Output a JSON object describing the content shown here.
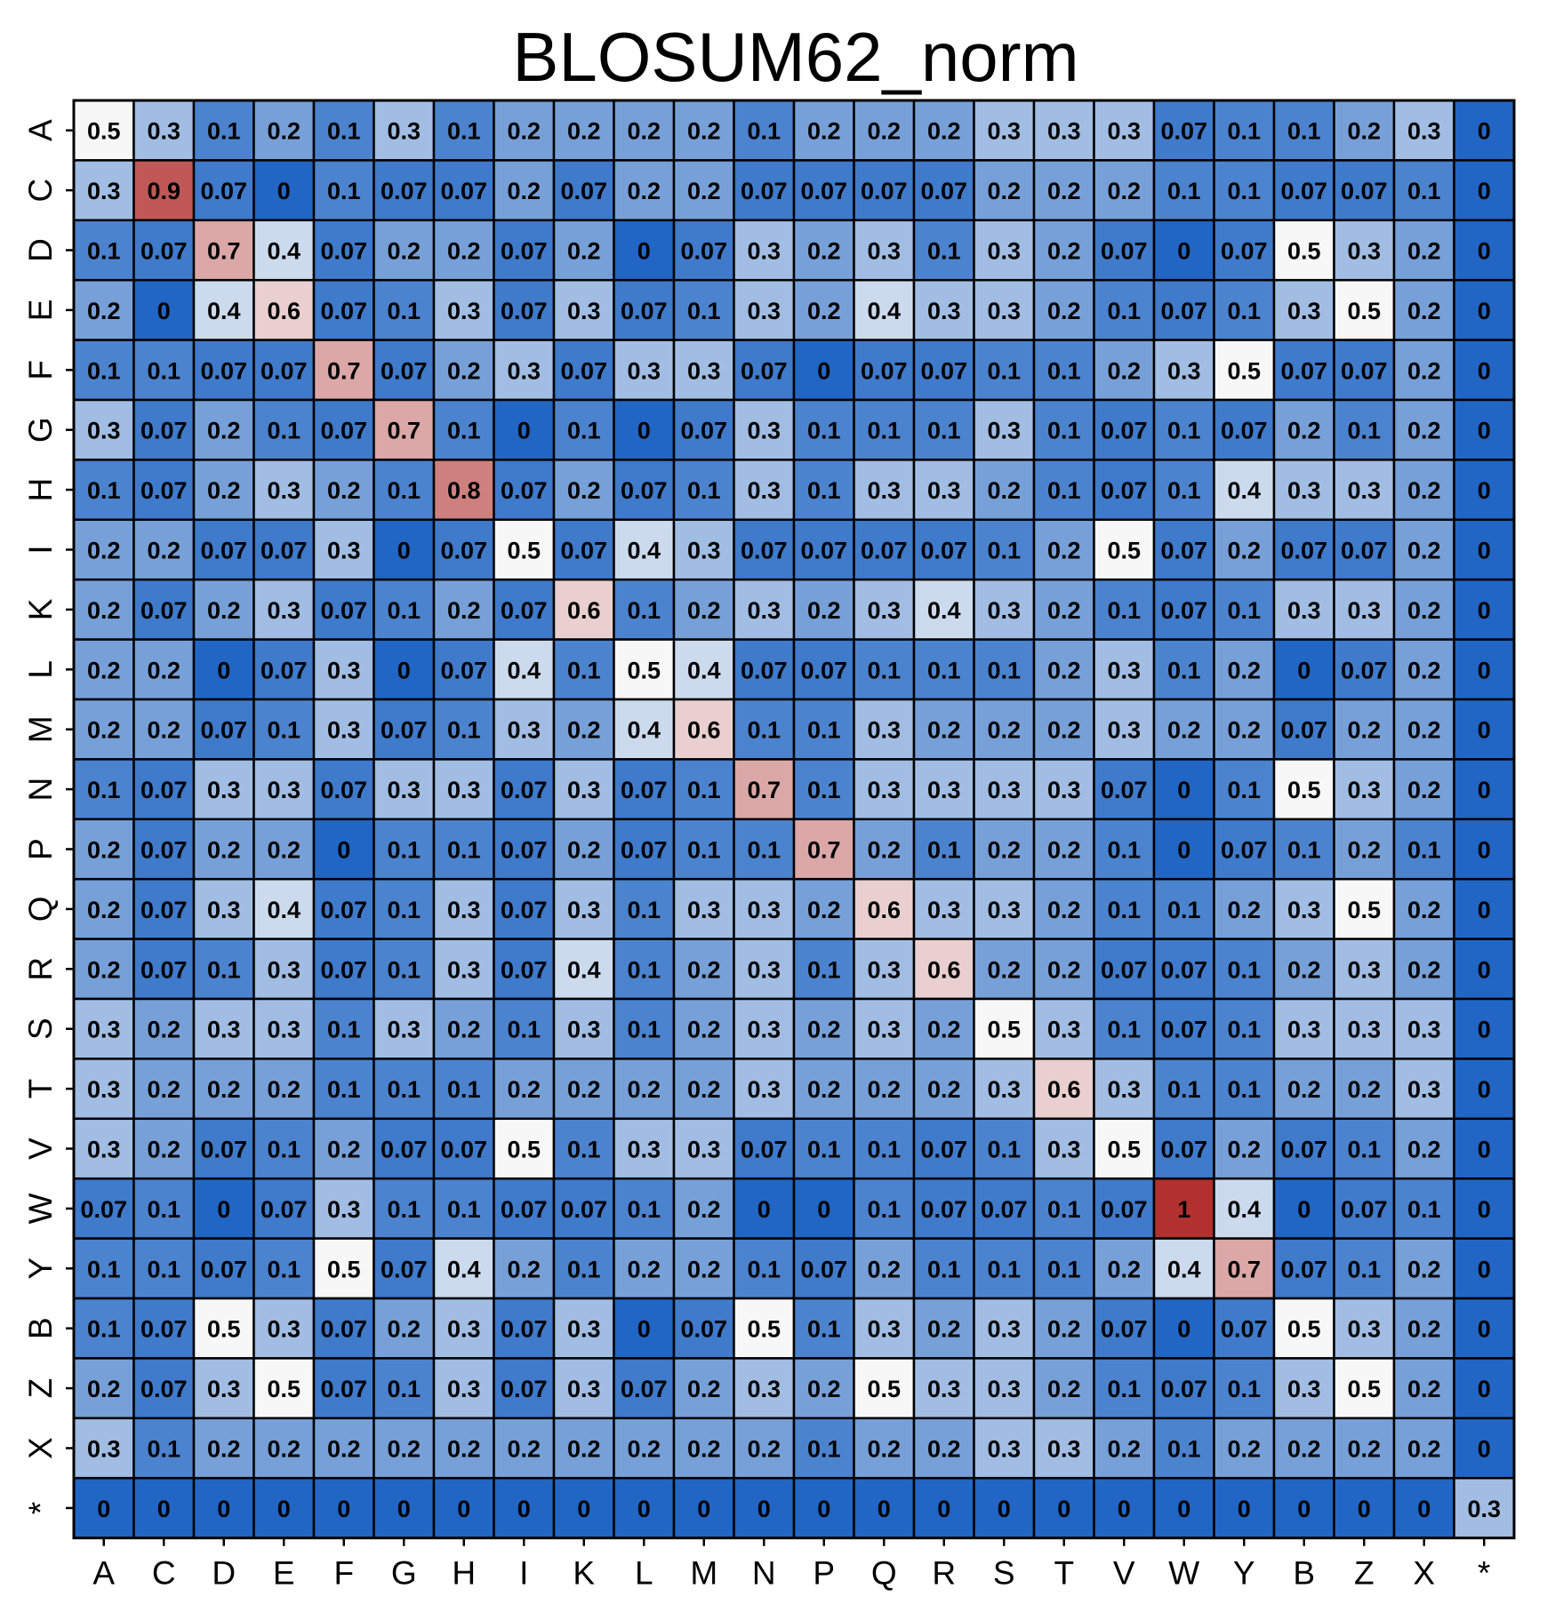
{
  "chart_data": {
    "type": "heatmap",
    "title": "BLOSUM62_norm",
    "x_labels": [
      "A",
      "C",
      "D",
      "E",
      "F",
      "G",
      "H",
      "I",
      "K",
      "L",
      "M",
      "N",
      "P",
      "Q",
      "R",
      "S",
      "T",
      "V",
      "W",
      "Y",
      "B",
      "Z",
      "X",
      "*"
    ],
    "y_labels": [
      "A",
      "C",
      "D",
      "E",
      "F",
      "G",
      "H",
      "I",
      "K",
      "L",
      "M",
      "N",
      "P",
      "Q",
      "R",
      "S",
      "T",
      "V",
      "W",
      "Y",
      "B",
      "Z",
      "X",
      "*"
    ],
    "value_range": [
      0,
      1
    ],
    "colorscale": {
      "low": "#2166c4",
      "mid": "#f7f7f7",
      "high": "#b2302f"
    },
    "values": [
      [
        0.5,
        0.3,
        0.1,
        0.2,
        0.1,
        0.3,
        0.1,
        0.2,
        0.2,
        0.2,
        0.2,
        0.1,
        0.2,
        0.2,
        0.2,
        0.3,
        0.3,
        0.3,
        0.07,
        0.1,
        0.1,
        0.2,
        0.3,
        0
      ],
      [
        0.3,
        0.9,
        0.07,
        0,
        0.1,
        0.07,
        0.07,
        0.2,
        0.07,
        0.2,
        0.2,
        0.07,
        0.07,
        0.07,
        0.07,
        0.2,
        0.2,
        0.2,
        0.1,
        0.1,
        0.07,
        0.07,
        0.1,
        0
      ],
      [
        0.1,
        0.07,
        0.7,
        0.4,
        0.07,
        0.2,
        0.2,
        0.07,
        0.2,
        0,
        0.07,
        0.3,
        0.2,
        0.3,
        0.1,
        0.3,
        0.2,
        0.07,
        0,
        0.07,
        0.5,
        0.3,
        0.2,
        0
      ],
      [
        0.2,
        0,
        0.4,
        0.6,
        0.07,
        0.1,
        0.3,
        0.07,
        0.3,
        0.07,
        0.1,
        0.3,
        0.2,
        0.4,
        0.3,
        0.3,
        0.2,
        0.1,
        0.07,
        0.1,
        0.3,
        0.5,
        0.2,
        0
      ],
      [
        0.1,
        0.1,
        0.07,
        0.07,
        0.7,
        0.07,
        0.2,
        0.3,
        0.07,
        0.3,
        0.3,
        0.07,
        0,
        0.07,
        0.07,
        0.1,
        0.1,
        0.2,
        0.3,
        0.5,
        0.07,
        0.07,
        0.2,
        0
      ],
      [
        0.3,
        0.07,
        0.2,
        0.1,
        0.07,
        0.7,
        0.1,
        0,
        0.1,
        0,
        0.07,
        0.3,
        0.1,
        0.1,
        0.1,
        0.3,
        0.1,
        0.07,
        0.1,
        0.07,
        0.2,
        0.1,
        0.2,
        0
      ],
      [
        0.1,
        0.07,
        0.2,
        0.3,
        0.2,
        0.1,
        0.8,
        0.07,
        0.2,
        0.07,
        0.1,
        0.3,
        0.1,
        0.3,
        0.3,
        0.2,
        0.1,
        0.07,
        0.1,
        0.4,
        0.3,
        0.3,
        0.2,
        0
      ],
      [
        0.2,
        0.2,
        0.07,
        0.07,
        0.3,
        0,
        0.07,
        0.5,
        0.07,
        0.4,
        0.3,
        0.07,
        0.07,
        0.07,
        0.07,
        0.1,
        0.2,
        0.5,
        0.07,
        0.2,
        0.07,
        0.07,
        0.2,
        0
      ],
      [
        0.2,
        0.07,
        0.2,
        0.3,
        0.07,
        0.1,
        0.2,
        0.07,
        0.6,
        0.1,
        0.2,
        0.3,
        0.2,
        0.3,
        0.4,
        0.3,
        0.2,
        0.1,
        0.07,
        0.1,
        0.3,
        0.3,
        0.2,
        0
      ],
      [
        0.2,
        0.2,
        0,
        0.07,
        0.3,
        0,
        0.07,
        0.4,
        0.1,
        0.5,
        0.4,
        0.07,
        0.07,
        0.1,
        0.1,
        0.1,
        0.2,
        0.3,
        0.1,
        0.2,
        0,
        0.07,
        0.2,
        0
      ],
      [
        0.2,
        0.2,
        0.07,
        0.1,
        0.3,
        0.07,
        0.1,
        0.3,
        0.2,
        0.4,
        0.6,
        0.1,
        0.1,
        0.3,
        0.2,
        0.2,
        0.2,
        0.3,
        0.2,
        0.2,
        0.07,
        0.2,
        0.2,
        0
      ],
      [
        0.1,
        0.07,
        0.3,
        0.3,
        0.07,
        0.3,
        0.3,
        0.07,
        0.3,
        0.07,
        0.1,
        0.7,
        0.1,
        0.3,
        0.3,
        0.3,
        0.3,
        0.07,
        0,
        0.1,
        0.5,
        0.3,
        0.2,
        0
      ],
      [
        0.2,
        0.07,
        0.2,
        0.2,
        0,
        0.1,
        0.1,
        0.07,
        0.2,
        0.07,
        0.1,
        0.1,
        0.7,
        0.2,
        0.1,
        0.2,
        0.2,
        0.1,
        0,
        0.07,
        0.1,
        0.2,
        0.1,
        0
      ],
      [
        0.2,
        0.07,
        0.3,
        0.4,
        0.07,
        0.1,
        0.3,
        0.07,
        0.3,
        0.1,
        0.3,
        0.3,
        0.2,
        0.6,
        0.3,
        0.3,
        0.2,
        0.1,
        0.1,
        0.2,
        0.3,
        0.5,
        0.2,
        0
      ],
      [
        0.2,
        0.07,
        0.1,
        0.3,
        0.07,
        0.1,
        0.3,
        0.07,
        0.4,
        0.1,
        0.2,
        0.3,
        0.1,
        0.3,
        0.6,
        0.2,
        0.2,
        0.07,
        0.07,
        0.1,
        0.2,
        0.3,
        0.2,
        0
      ],
      [
        0.3,
        0.2,
        0.3,
        0.3,
        0.1,
        0.3,
        0.2,
        0.1,
        0.3,
        0.1,
        0.2,
        0.3,
        0.2,
        0.3,
        0.2,
        0.5,
        0.3,
        0.1,
        0.07,
        0.1,
        0.3,
        0.3,
        0.3,
        0
      ],
      [
        0.3,
        0.2,
        0.2,
        0.2,
        0.1,
        0.1,
        0.1,
        0.2,
        0.2,
        0.2,
        0.2,
        0.3,
        0.2,
        0.2,
        0.2,
        0.3,
        0.6,
        0.3,
        0.1,
        0.1,
        0.2,
        0.2,
        0.3,
        0
      ],
      [
        0.3,
        0.2,
        0.07,
        0.1,
        0.2,
        0.07,
        0.07,
        0.5,
        0.1,
        0.3,
        0.3,
        0.07,
        0.1,
        0.1,
        0.07,
        0.1,
        0.3,
        0.5,
        0.07,
        0.2,
        0.07,
        0.1,
        0.2,
        0
      ],
      [
        0.07,
        0.1,
        0,
        0.07,
        0.3,
        0.1,
        0.1,
        0.07,
        0.07,
        0.1,
        0.2,
        0,
        0,
        0.1,
        0.07,
        0.07,
        0.1,
        0.07,
        1,
        0.4,
        0,
        0.07,
        0.1,
        0
      ],
      [
        0.1,
        0.1,
        0.07,
        0.1,
        0.5,
        0.07,
        0.4,
        0.2,
        0.1,
        0.2,
        0.2,
        0.1,
        0.07,
        0.2,
        0.1,
        0.1,
        0.1,
        0.2,
        0.4,
        0.7,
        0.07,
        0.1,
        0.2,
        0
      ],
      [
        0.1,
        0.07,
        0.5,
        0.3,
        0.07,
        0.2,
        0.3,
        0.07,
        0.3,
        0,
        0.07,
        0.5,
        0.1,
        0.3,
        0.2,
        0.3,
        0.2,
        0.07,
        0,
        0.07,
        0.5,
        0.3,
        0.2,
        0
      ],
      [
        0.2,
        0.07,
        0.3,
        0.5,
        0.07,
        0.1,
        0.3,
        0.07,
        0.3,
        0.07,
        0.2,
        0.3,
        0.2,
        0.5,
        0.3,
        0.3,
        0.2,
        0.1,
        0.07,
        0.1,
        0.3,
        0.5,
        0.2,
        0
      ],
      [
        0.3,
        0.1,
        0.2,
        0.2,
        0.2,
        0.2,
        0.2,
        0.2,
        0.2,
        0.2,
        0.2,
        0.2,
        0.1,
        0.2,
        0.2,
        0.3,
        0.3,
        0.2,
        0.1,
        0.2,
        0.2,
        0.2,
        0.2,
        0
      ],
      [
        0,
        0,
        0,
        0,
        0,
        0,
        0,
        0,
        0,
        0,
        0,
        0,
        0,
        0,
        0,
        0,
        0,
        0,
        0,
        0,
        0,
        0,
        0,
        0.3
      ]
    ]
  }
}
